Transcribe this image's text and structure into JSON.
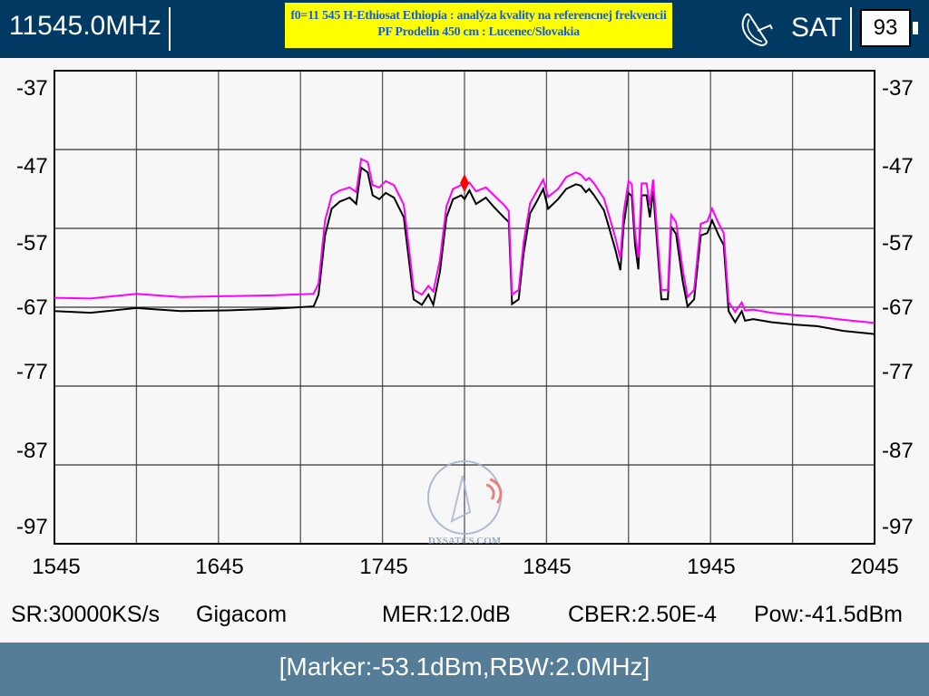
{
  "header": {
    "frequency": "11545.0MHz",
    "note_line1": "f0=11 545 H-Ethiosat Ethiopia : analýza kvality na referencnej frekvencii",
    "note_line2": "PF Prodelin 450 cm : Lucenec/Slovakia",
    "mode": "SAT",
    "mode_icon": "satellite-dish-icon",
    "battery": "93"
  },
  "watermark": "DXSATCS.COM",
  "chart_data": {
    "type": "line",
    "xlim": [
      1545,
      2045
    ],
    "ylim": [
      -97,
      -37
    ],
    "x_ticks": [
      "1545",
      "1645",
      "1745",
      "1845",
      "1945",
      "2045"
    ],
    "y_ticks": [
      "-37",
      "-47",
      "-57",
      "-67",
      "-77",
      "-87",
      "-97"
    ],
    "grid": true,
    "series": [
      {
        "color": "#000000",
        "points": [
          [
            1545,
            -67.5
          ],
          [
            1567,
            -67.7
          ],
          [
            1595,
            -67.1
          ],
          [
            1622,
            -67.5
          ],
          [
            1650,
            -67.4
          ],
          [
            1678,
            -67.2
          ],
          [
            1703,
            -66.9
          ],
          [
            1706,
            -65.4
          ],
          [
            1710,
            -57.9
          ],
          [
            1714,
            -54.5
          ],
          [
            1719,
            -53.6
          ],
          [
            1725,
            -53.1
          ],
          [
            1729,
            -53.9
          ],
          [
            1732,
            -49.3
          ],
          [
            1736,
            -49.9
          ],
          [
            1739,
            -52.8
          ],
          [
            1743,
            -53.3
          ],
          [
            1747,
            -52.5
          ],
          [
            1752,
            -53.1
          ],
          [
            1758,
            -55.6
          ],
          [
            1762,
            -62.5
          ],
          [
            1764,
            -66.0
          ],
          [
            1769,
            -66.7
          ],
          [
            1773,
            -65.4
          ],
          [
            1776,
            -66.7
          ],
          [
            1780,
            -62.5
          ],
          [
            1784,
            -55.6
          ],
          [
            1788,
            -53.3
          ],
          [
            1793,
            -52.8
          ],
          [
            1795,
            -53.3
          ],
          [
            1798,
            -52.2
          ],
          [
            1802,
            -53.9
          ],
          [
            1808,
            -53.1
          ],
          [
            1813,
            -54.3
          ],
          [
            1819,
            -55.6
          ],
          [
            1822,
            -56.2
          ],
          [
            1824,
            -66.6
          ],
          [
            1828,
            -66.0
          ],
          [
            1831,
            -60.2
          ],
          [
            1835,
            -55.1
          ],
          [
            1839,
            -53.6
          ],
          [
            1843,
            -52.0
          ],
          [
            1846,
            -54.5
          ],
          [
            1852,
            -53.3
          ],
          [
            1857,
            -52.0
          ],
          [
            1863,
            -51.4
          ],
          [
            1866,
            -51.6
          ],
          [
            1869,
            -52.4
          ],
          [
            1871,
            -52.0
          ],
          [
            1874,
            -52.8
          ],
          [
            1880,
            -54.7
          ],
          [
            1883,
            -56.8
          ],
          [
            1887,
            -59.7
          ],
          [
            1890,
            -62.3
          ],
          [
            1892,
            -56.6
          ],
          [
            1895,
            -52.5
          ],
          [
            1897,
            -52.9
          ],
          [
            1899,
            -59.1
          ],
          [
            1901,
            -62.2
          ],
          [
            1903,
            -52.8
          ],
          [
            1906,
            -52.8
          ],
          [
            1908,
            -55.6
          ],
          [
            1910,
            -52.2
          ],
          [
            1912,
            -57.7
          ],
          [
            1915,
            -66.0
          ],
          [
            1919,
            -66.0
          ],
          [
            1921,
            -56.8
          ],
          [
            1924,
            -57.7
          ],
          [
            1928,
            -63.7
          ],
          [
            1931,
            -66.9
          ],
          [
            1935,
            -66.0
          ],
          [
            1939,
            -57.9
          ],
          [
            1943,
            -57.6
          ],
          [
            1946,
            -56.0
          ],
          [
            1950,
            -57.9
          ],
          [
            1953,
            -59.1
          ],
          [
            1956,
            -67.5
          ],
          [
            1960,
            -68.9
          ],
          [
            1964,
            -67.5
          ],
          [
            1966,
            -68.7
          ],
          [
            1971,
            -68.5
          ],
          [
            1982,
            -68.9
          ],
          [
            1996,
            -69.2
          ],
          [
            2010,
            -69.4
          ],
          [
            2026,
            -70.0
          ],
          [
            2045,
            -70.4
          ]
        ]
      },
      {
        "color": "#ff00ff",
        "points": [
          [
            1545,
            -65.8
          ],
          [
            1567,
            -65.9
          ],
          [
            1595,
            -65.3
          ],
          [
            1622,
            -65.7
          ],
          [
            1650,
            -65.6
          ],
          [
            1678,
            -65.5
          ],
          [
            1703,
            -65.3
          ],
          [
            1706,
            -64.0
          ],
          [
            1710,
            -56.0
          ],
          [
            1714,
            -52.8
          ],
          [
            1719,
            -52.2
          ],
          [
            1725,
            -51.8
          ],
          [
            1729,
            -52.4
          ],
          [
            1732,
            -48.2
          ],
          [
            1736,
            -48.6
          ],
          [
            1739,
            -51.5
          ],
          [
            1743,
            -51.8
          ],
          [
            1747,
            -51.0
          ],
          [
            1752,
            -51.5
          ],
          [
            1758,
            -54.0
          ],
          [
            1762,
            -61.0
          ],
          [
            1764,
            -64.8
          ],
          [
            1769,
            -65.4
          ],
          [
            1773,
            -64.3
          ],
          [
            1776,
            -65.0
          ],
          [
            1780,
            -61.0
          ],
          [
            1784,
            -54.2
          ],
          [
            1788,
            -52.0
          ],
          [
            1793,
            -51.5
          ],
          [
            1795,
            -51.6
          ],
          [
            1798,
            -51.2
          ],
          [
            1802,
            -52.3
          ],
          [
            1808,
            -51.8
          ],
          [
            1813,
            -52.8
          ],
          [
            1819,
            -54.0
          ],
          [
            1822,
            -54.8
          ],
          [
            1824,
            -65.4
          ],
          [
            1828,
            -64.8
          ],
          [
            1831,
            -58.8
          ],
          [
            1835,
            -53.8
          ],
          [
            1839,
            -52.3
          ],
          [
            1843,
            -50.8
          ],
          [
            1846,
            -53.0
          ],
          [
            1852,
            -52.0
          ],
          [
            1857,
            -50.5
          ],
          [
            1863,
            -49.9
          ],
          [
            1866,
            -50.2
          ],
          [
            1869,
            -50.9
          ],
          [
            1871,
            -50.6
          ],
          [
            1874,
            -51.3
          ],
          [
            1880,
            -53.2
          ],
          [
            1883,
            -55.3
          ],
          [
            1887,
            -58.2
          ],
          [
            1890,
            -60.8
          ],
          [
            1892,
            -55.0
          ],
          [
            1895,
            -51.0
          ],
          [
            1897,
            -51.4
          ],
          [
            1899,
            -57.6
          ],
          [
            1901,
            -60.7
          ],
          [
            1903,
            -51.3
          ],
          [
            1906,
            -51.3
          ],
          [
            1908,
            -54.1
          ],
          [
            1910,
            -50.8
          ],
          [
            1912,
            -56.2
          ],
          [
            1915,
            -64.8
          ],
          [
            1919,
            -64.8
          ],
          [
            1921,
            -55.3
          ],
          [
            1924,
            -56.2
          ],
          [
            1928,
            -62.2
          ],
          [
            1931,
            -65.7
          ],
          [
            1935,
            -64.8
          ],
          [
            1939,
            -56.4
          ],
          [
            1943,
            -56.1
          ],
          [
            1946,
            -54.5
          ],
          [
            1950,
            -56.4
          ],
          [
            1953,
            -57.6
          ],
          [
            1956,
            -66.3
          ],
          [
            1960,
            -67.6
          ],
          [
            1964,
            -66.4
          ],
          [
            1966,
            -67.4
          ],
          [
            1971,
            -67.3
          ],
          [
            1982,
            -67.7
          ],
          [
            1996,
            -68.0
          ],
          [
            2010,
            -68.2
          ],
          [
            2026,
            -68.6
          ],
          [
            2045,
            -69.0
          ]
        ]
      }
    ],
    "marker": {
      "freq": 1795,
      "color": "#ff0000"
    }
  },
  "status": {
    "sr": "SR:30000KS/s",
    "operator": "Gigacom",
    "mer": "MER:12.0dB",
    "cber": "CBER:2.50E-4",
    "pow": "Pow:-41.5dBm"
  },
  "footer": {
    "marker_info": "[Marker:-53.1dBm,RBW:2.0MHz]"
  }
}
